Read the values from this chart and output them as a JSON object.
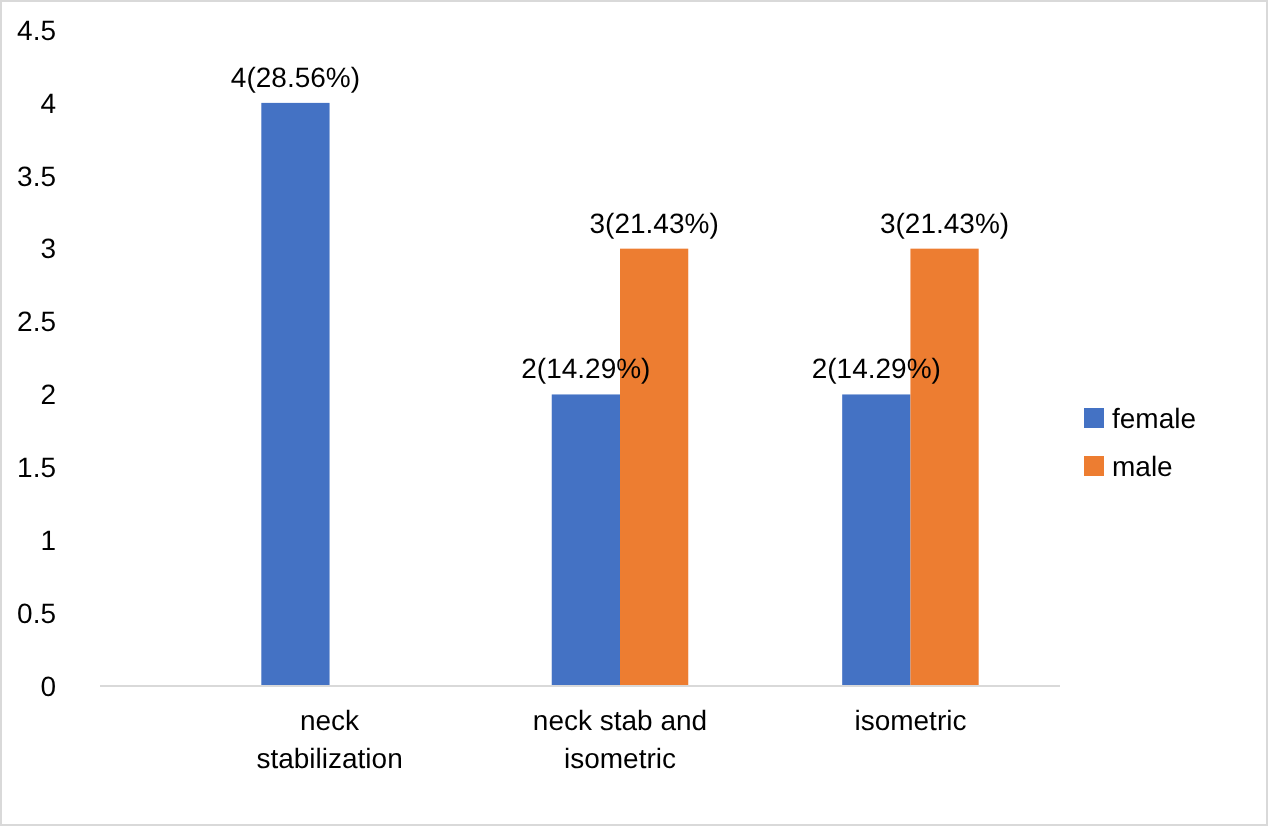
{
  "chart_data": {
    "type": "bar",
    "categories": [
      "neck stabilization",
      "neck stab and isometric",
      "isometric"
    ],
    "series": [
      {
        "name": "female",
        "color": "#4472c4",
        "values": [
          4,
          2,
          2
        ],
        "value_labels": [
          "4(28.56%)",
          "2(14.29%)",
          "2(14.29%)"
        ]
      },
      {
        "name": "male",
        "color": "#ed7d31",
        "values": [
          null,
          3,
          3
        ],
        "value_labels": [
          null,
          "3(21.43%)",
          "3(21.43%)"
        ]
      }
    ],
    "ylim": [
      0,
      4.5
    ],
    "yticks": [
      0,
      0.5,
      1,
      1.5,
      2,
      2.5,
      3,
      3.5,
      4,
      4.5
    ],
    "grid": false,
    "legend": "right"
  }
}
